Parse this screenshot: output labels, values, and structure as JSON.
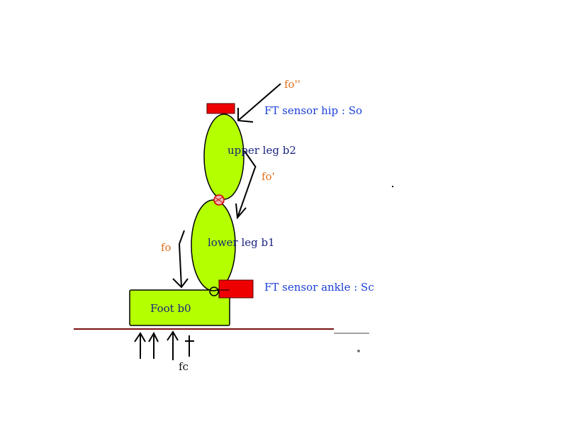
{
  "labels": {
    "force_hip": "fo''",
    "sensor_hip": "FT  sensor  hip  :  So",
    "upper_leg": "upper  leg  b2",
    "force_knee": "fo'",
    "lower_leg": "lower  leg  b1",
    "force_ankle": "fo",
    "sensor_ankle": "FT  sensor  ankle  :  Sc",
    "foot": "Foot  b0",
    "contact_force": "fc"
  },
  "colors": {
    "body": "#b4ff00",
    "sensor": "#ee0000",
    "ground": "#7a1010",
    "force_label": "#e07020",
    "sensor_label": "#1a3fd6",
    "body_label": "#1a237e"
  }
}
